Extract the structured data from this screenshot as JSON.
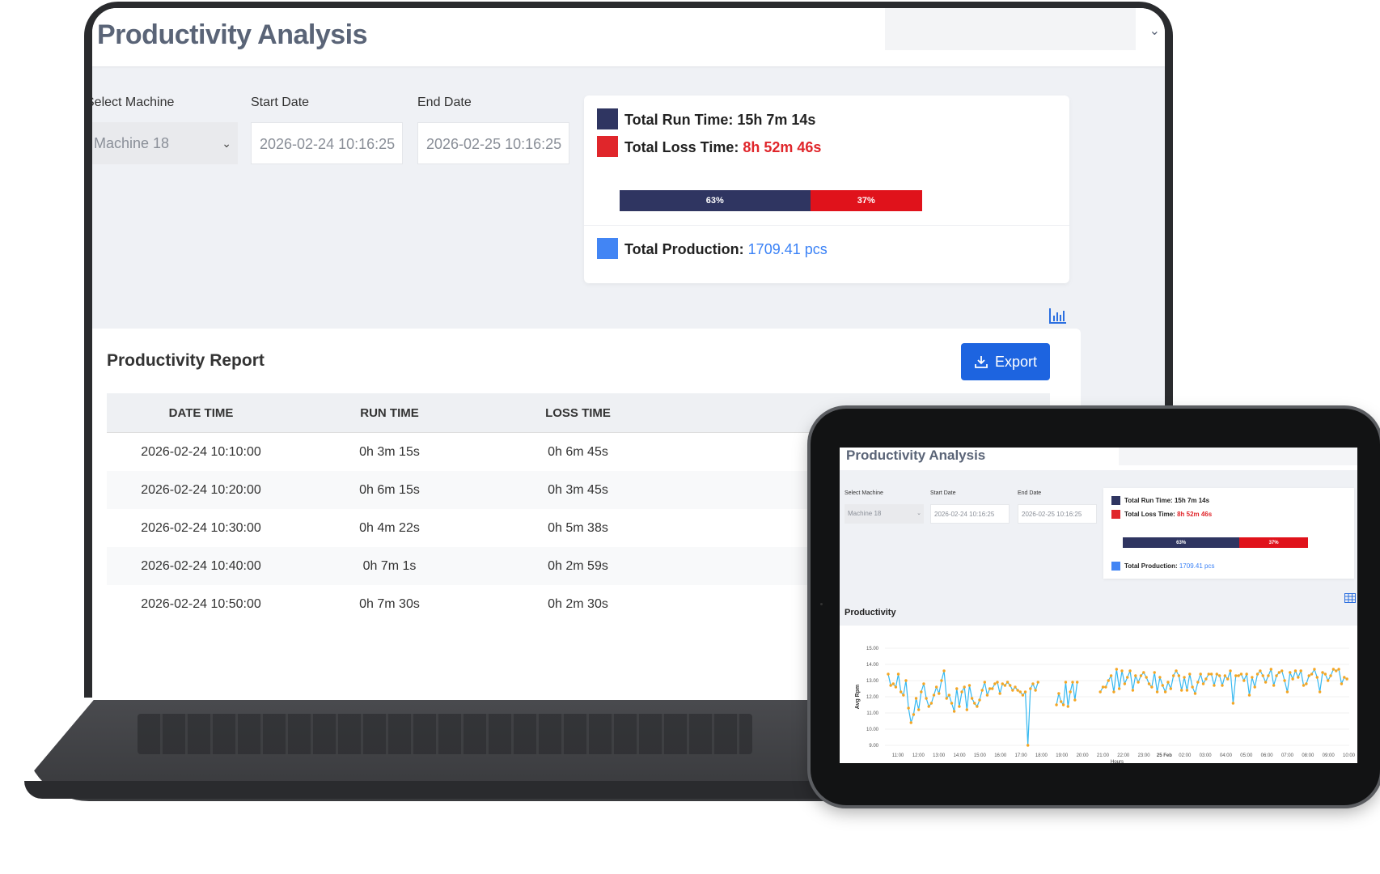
{
  "app": {
    "title": "Productivity Analysis"
  },
  "filters": {
    "machine_label": "Select Machine",
    "machine_value": "Machine 18",
    "start_label": "Start Date",
    "start_value": "2026-02-24 10:16:25",
    "end_label": "End Date",
    "end_value": "2026-02-25 10:16:25"
  },
  "summary": {
    "run_label": "Total Run Time:",
    "run_value": "15h 7m 14s",
    "loss_label": "Total Loss Time:",
    "loss_value": "8h 52m 46s",
    "run_pct": 63,
    "run_pct_label": "63%",
    "loss_pct": 37,
    "loss_pct_label": "37%",
    "production_label": "Total Production:",
    "production_value": "1709.41 pcs",
    "colors": {
      "run": "#2f3561",
      "loss": "#e0121b",
      "production": "#4285f4"
    }
  },
  "report": {
    "title": "Productivity Report",
    "export_label": "Export",
    "columns": [
      "DATE TIME",
      "RUN TIME",
      "LOSS TIME"
    ],
    "rows": [
      [
        "2026-02-24 10:10:00",
        "0h 3m 15s",
        "0h 6m 45s"
      ],
      [
        "2026-02-24 10:20:00",
        "0h 6m 15s",
        "0h 3m 45s"
      ],
      [
        "2026-02-24 10:30:00",
        "0h 4m 22s",
        "0h 5m 38s"
      ],
      [
        "2026-02-24 10:40:00",
        "0h 7m 1s",
        "0h 2m 59s"
      ],
      [
        "2026-02-24 10:50:00",
        "0h 7m 30s",
        "0h 2m 30s"
      ]
    ]
  },
  "icons": {
    "export": "download-icon",
    "view_chart": "bar-chart-icon",
    "view_table": "table-icon",
    "dropdown": "chevron-down-icon"
  },
  "chart_data": {
    "type": "line",
    "title": "Productivity",
    "ylabel": "Avg Rpm",
    "xlabel": "Hours",
    "ylim": [
      9,
      15
    ],
    "yticks": [
      "15.00",
      "14.00",
      "13.00",
      "12.00",
      "11.00",
      "10.00",
      "9.00"
    ],
    "xticks": [
      "11:00",
      "12:00",
      "13:00",
      "14:00",
      "15:00",
      "16:00",
      "17:00",
      "18:00",
      "19:00",
      "20:00",
      "21:00",
      "22:00",
      "23:00",
      "25 Feb",
      "02:00",
      "03:00",
      "04:00",
      "05:00",
      "06:00",
      "07:00",
      "08:00",
      "09:00",
      "10:00"
    ],
    "line_color": "#35b8f0",
    "marker_color": "#f5a623",
    "series": [
      {
        "segments": [
          [
            13.4,
            12.7,
            12.8,
            12.6,
            13.4,
            12.3,
            12.1,
            13.0,
            11.3,
            10.4,
            10.9,
            11.9,
            11.2,
            12.3,
            12.8,
            11.9,
            11.4,
            11.6,
            12.1,
            12.6,
            12.2,
            13.0,
            13.6,
            11.9,
            12.1,
            11.6,
            11.1,
            12.5,
            11.4,
            12.3,
            12.6,
            11.2,
            12.7,
            11.9,
            11.6,
            11.4,
            11.8,
            12.4,
            12.9,
            12.1,
            12.5,
            12.5,
            12.8,
            12.9,
            12.2,
            12.8,
            12.7,
            12.9,
            12.7,
            12.4,
            12.6,
            12.4,
            12.3,
            12.1,
            12.3,
            9.0,
            12.5,
            12.8,
            12.4,
            12.9
          ],
          [
            11.5,
            12.2,
            11.7,
            11.5,
            12.9,
            11.4,
            12.3,
            12.9,
            11.8,
            12.9
          ],
          [
            12.3,
            12.6,
            12.6,
            13.0,
            13.3,
            12.3,
            13.7,
            12.5,
            13.6,
            12.8,
            13.2,
            13.6,
            12.4,
            13.3,
            12.9,
            13.3,
            13.5,
            13.2,
            12.8,
            12.6,
            13.5,
            12.3,
            13.2,
            12.7,
            12.3,
            12.9,
            12.5,
            13.3,
            13.6,
            13.3,
            12.4,
            13.2,
            12.4,
            13.4,
            12.6,
            12.2,
            12.9,
            13.4,
            12.8,
            13.1,
            13.4,
            13.4,
            12.7,
            13.4,
            13.3,
            12.7,
            13.3,
            13.1,
            13.6,
            11.6,
            13.3,
            13.3,
            13.4,
            13.0,
            13.4,
            12.1,
            13.2,
            12.6,
            13.4,
            13.6,
            13.3,
            12.9,
            13.3,
            13.7,
            12.7,
            13.3,
            13.5,
            13.6,
            13.0,
            12.3,
            13.5,
            13.1,
            13.6,
            13.2,
            13.6,
            12.7,
            12.8,
            13.3,
            13.4,
            13.7,
            13.2,
            12.3,
            13.5,
            13.4,
            13.0,
            13.3,
            13.7,
            13.6,
            13.7,
            12.8,
            13.2,
            13.1
          ]
        ]
      }
    ]
  }
}
